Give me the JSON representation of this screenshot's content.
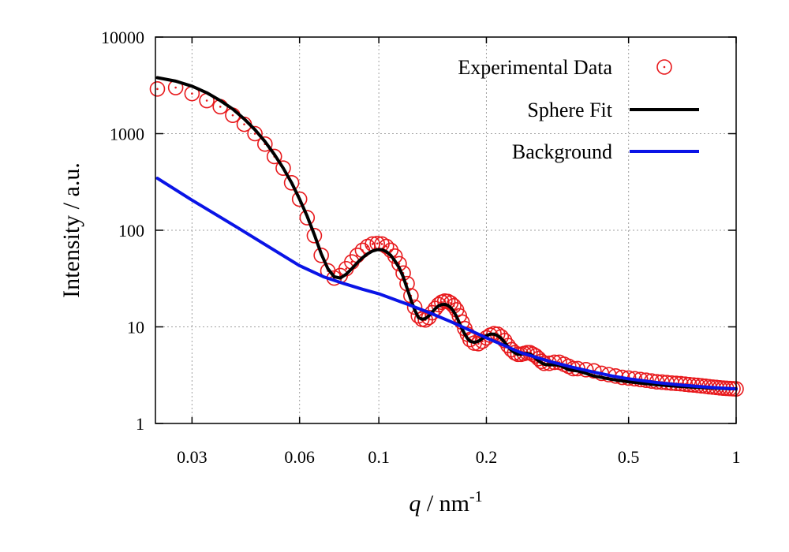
{
  "chart_data": {
    "type": "scatter",
    "xscale": "log",
    "yscale": "log",
    "xlim": [
      0.0237,
      1
    ],
    "ylim": [
      1,
      10000
    ],
    "xticks": [
      {
        "value": 0.03,
        "label": "0.03"
      },
      {
        "value": 0.06,
        "label": "0.06"
      },
      {
        "value": 0.1,
        "label": "0.1"
      },
      {
        "value": 0.2,
        "label": "0.2"
      },
      {
        "value": 0.5,
        "label": "0.5"
      },
      {
        "value": 1,
        "label": "1"
      }
    ],
    "yticks": [
      {
        "value": 1,
        "label": "1"
      },
      {
        "value": 10,
        "label": "10"
      },
      {
        "value": 100,
        "label": "100"
      },
      {
        "value": 1000,
        "label": "1000"
      },
      {
        "value": 10000,
        "label": "10000"
      }
    ],
    "xlabel": {
      "italic": "q",
      "text": " / nm",
      "sup": "-1"
    },
    "ylabel": "Intensity / a.u.",
    "grid": true,
    "legend_position": "top-right",
    "series": [
      {
        "name": "Experimental Data",
        "kind": "markers",
        "marker": "circle-dot",
        "color": "#e8191c",
        "x": [
          0.024,
          0.027,
          0.03,
          0.033,
          0.036,
          0.039,
          0.042,
          0.045,
          0.048,
          0.051,
          0.054,
          0.057,
          0.06,
          0.063,
          0.066,
          0.069,
          0.072,
          0.075,
          0.078,
          0.081,
          0.084,
          0.087,
          0.09,
          0.093,
          0.096,
          0.099,
          0.102,
          0.105,
          0.108,
          0.111,
          0.114,
          0.117,
          0.12,
          0.123,
          0.126,
          0.129,
          0.132,
          0.135,
          0.138,
          0.141,
          0.144,
          0.147,
          0.15,
          0.153,
          0.156,
          0.159,
          0.162,
          0.165,
          0.168,
          0.171,
          0.174,
          0.177,
          0.18,
          0.185,
          0.19,
          0.195,
          0.2,
          0.205,
          0.21,
          0.215,
          0.22,
          0.225,
          0.23,
          0.235,
          0.24,
          0.245,
          0.25,
          0.255,
          0.26,
          0.265,
          0.27,
          0.275,
          0.28,
          0.285,
          0.29,
          0.3,
          0.31,
          0.32,
          0.33,
          0.34,
          0.35,
          0.36,
          0.38,
          0.4,
          0.42,
          0.44,
          0.46,
          0.48,
          0.5,
          0.52,
          0.54,
          0.56,
          0.58,
          0.6,
          0.62,
          0.64,
          0.66,
          0.68,
          0.7,
          0.72,
          0.74,
          0.76,
          0.78,
          0.8,
          0.82,
          0.84,
          0.86,
          0.88,
          0.9,
          0.92,
          0.94,
          0.96,
          0.98,
          1.0
        ],
        "y": [
          2900,
          3000,
          2600,
          2200,
          1900,
          1550,
          1250,
          1000,
          780,
          580,
          440,
          310,
          210,
          135,
          88,
          55,
          38,
          32,
          34,
          40,
          47,
          55,
          62,
          68,
          72,
          73,
          72,
          68,
          62,
          54,
          45,
          36,
          28,
          21,
          16,
          13,
          12,
          11.8,
          12.5,
          14,
          15.5,
          17,
          18,
          18.5,
          18.3,
          17.6,
          16.5,
          15,
          13,
          11.2,
          9.6,
          8.4,
          7.4,
          6.8,
          6.7,
          7.1,
          7.7,
          8.2,
          8.5,
          8.4,
          7.9,
          7.2,
          6.4,
          5.8,
          5.4,
          5.2,
          5.2,
          5.3,
          5.4,
          5.4,
          5.2,
          5.0,
          4.7,
          4.4,
          4.2,
          4.2,
          4.3,
          4.3,
          4.1,
          3.9,
          3.7,
          3.7,
          3.6,
          3.5,
          3.3,
          3.2,
          3.1,
          3.0,
          2.95,
          2.9,
          2.85,
          2.8,
          2.75,
          2.7,
          2.68,
          2.65,
          2.62,
          2.6,
          2.58,
          2.55,
          2.52,
          2.5,
          2.48,
          2.45,
          2.43,
          2.4,
          2.38,
          2.36,
          2.34,
          2.32,
          2.31,
          2.3,
          2.29,
          2.28
        ]
      },
      {
        "name": "Sphere Fit",
        "kind": "line",
        "color": "#000000",
        "x": [
          0.024,
          0.027,
          0.03,
          0.033,
          0.036,
          0.039,
          0.042,
          0.045,
          0.048,
          0.051,
          0.054,
          0.057,
          0.06,
          0.063,
          0.066,
          0.069,
          0.072,
          0.075,
          0.078,
          0.081,
          0.084,
          0.087,
          0.09,
          0.093,
          0.096,
          0.099,
          0.102,
          0.105,
          0.108,
          0.111,
          0.114,
          0.117,
          0.12,
          0.123,
          0.126,
          0.129,
          0.132,
          0.135,
          0.138,
          0.141,
          0.144,
          0.147,
          0.15,
          0.153,
          0.156,
          0.159,
          0.162,
          0.165,
          0.168,
          0.171,
          0.174,
          0.177,
          0.18,
          0.185,
          0.19,
          0.195,
          0.2,
          0.205,
          0.21,
          0.215,
          0.22,
          0.225,
          0.23,
          0.235,
          0.24,
          0.245,
          0.25,
          0.255,
          0.26,
          0.265,
          0.27,
          0.275,
          0.28,
          0.285,
          0.29,
          0.3,
          0.31,
          0.32,
          0.33,
          0.34,
          0.35,
          0.36,
          0.38,
          0.4,
          0.42,
          0.44,
          0.46,
          0.48,
          0.5,
          0.55,
          0.6,
          0.65,
          0.7,
          0.75,
          0.8,
          0.85,
          0.9,
          0.95,
          1.0
        ],
        "y": [
          3800,
          3500,
          3100,
          2650,
          2200,
          1800,
          1420,
          1100,
          830,
          610,
          440,
          310,
          210,
          140,
          90,
          57,
          40,
          33,
          32,
          35,
          40,
          46,
          52,
          57,
          61,
          63,
          63,
          60,
          55,
          48,
          41,
          33,
          25,
          19,
          15,
          12.5,
          12,
          12.2,
          13,
          14.2,
          15.5,
          16.5,
          17,
          17.1,
          16.7,
          15.8,
          14.4,
          12.8,
          11,
          9.5,
          8.4,
          7.6,
          7.1,
          6.9,
          7.1,
          7.6,
          8.1,
          8.4,
          8.4,
          8.1,
          7.6,
          6.9,
          6.2,
          5.7,
          5.4,
          5.2,
          5.2,
          5.3,
          5.3,
          5.2,
          5.0,
          4.7,
          4.45,
          4.25,
          4.1,
          4.05,
          4.05,
          4.0,
          3.8,
          3.6,
          3.55,
          3.5,
          3.3,
          3.1,
          3.0,
          2.9,
          2.82,
          2.76,
          2.7,
          2.6,
          2.52,
          2.46,
          2.42,
          2.38,
          2.35,
          2.33,
          2.31,
          2.29,
          2.28
        ]
      },
      {
        "name": "Background",
        "kind": "line",
        "color": "#0a14e6",
        "x": [
          0.024,
          0.03,
          0.04,
          0.05,
          0.06,
          0.07,
          0.08,
          0.09,
          0.1,
          0.12,
          0.14,
          0.16,
          0.18,
          0.2,
          0.25,
          0.3,
          0.35,
          0.4,
          0.45,
          0.5,
          0.6,
          0.7,
          0.8,
          0.9,
          1.0
        ],
        "y": [
          345,
          205,
          108,
          65,
          43,
          33,
          28,
          24.5,
          22,
          17.2,
          13.8,
          11.2,
          9.2,
          7.7,
          5.4,
          4.4,
          3.8,
          3.4,
          3.1,
          2.9,
          2.65,
          2.5,
          2.4,
          2.33,
          2.28
        ]
      }
    ]
  }
}
